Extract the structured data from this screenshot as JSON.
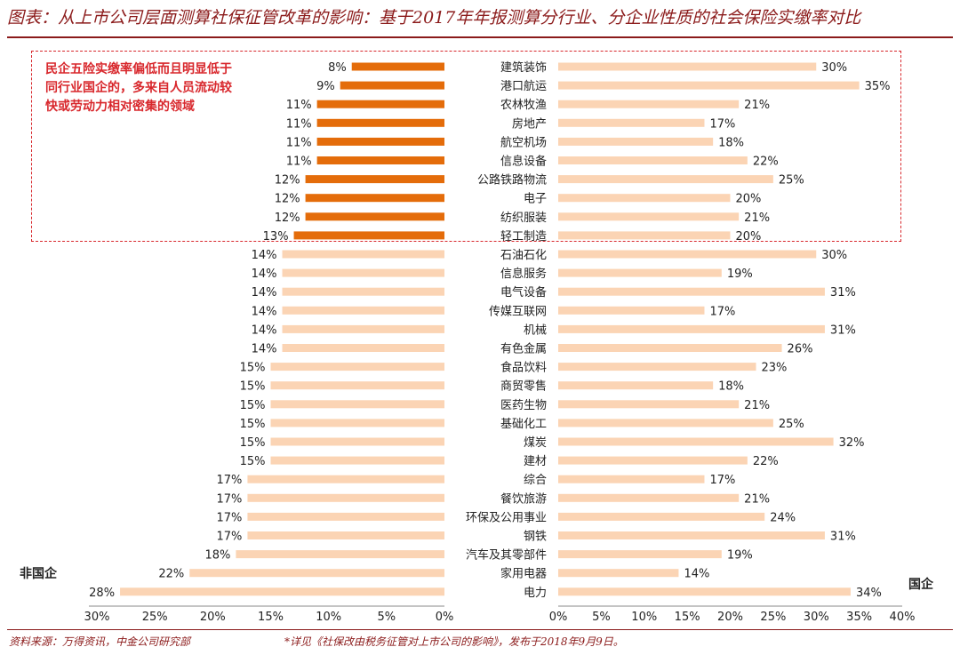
{
  "title": "图表：从上市公司层面测算社保征管改革的影响：基于2017年年报测算分行业、分企业性质的社会保险实缴率对比",
  "annotation": "民企五险实缴率偏低而且明显低于同行业国企的，多来自人员流动较快或劳动力相对密集的领域",
  "source": "资料来源：万得资讯，中金公司研究部",
  "note": "*详见《社保改由税务征管对上市公司的影响》，发布于2018年9月9日。",
  "colors": {
    "highlight": "#e46c0a",
    "normal": "#fbd4b4",
    "title": "#8b1a1a",
    "annotation": "#d8272c"
  },
  "chart_data": {
    "type": "bar",
    "orientation": "horizontal-back-to-back",
    "categories": [
      "建筑装饰",
      "港口航运",
      "农林牧渔",
      "房地产",
      "航空机场",
      "信息设备",
      "公路铁路物流",
      "电子",
      "纺织服装",
      "轻工制造",
      "石油石化",
      "信息服务",
      "电气设备",
      "传媒互联网",
      "机械",
      "有色金属",
      "食品饮料",
      "商贸零售",
      "医药生物",
      "基础化工",
      "煤炭",
      "建材",
      "综合",
      "餐饮旅游",
      "环保及公用事业",
      "钢铁",
      "汽车及其零部件",
      "家用电器",
      "电力"
    ],
    "series": [
      {
        "name": "非国企",
        "values": [
          8,
          9,
          11,
          11,
          11,
          11,
          12,
          12,
          12,
          13,
          14,
          14,
          14,
          14,
          14,
          14,
          15,
          15,
          15,
          15,
          15,
          15,
          17,
          17,
          17,
          17,
          18,
          22,
          28
        ],
        "labels": [
          "8%",
          "9%",
          "11%",
          "11%",
          "11%",
          "11%",
          "12%",
          "12%",
          "12%",
          "13%",
          "14%",
          "14%",
          "14%",
          "14%",
          "14%",
          "14%",
          "15%",
          "15%",
          "15%",
          "15%",
          "15%",
          "15%",
          "17%",
          "17%",
          "17%",
          "17%",
          "18%",
          "22%",
          "28%"
        ]
      },
      {
        "name": "国企",
        "values": [
          30,
          35,
          21,
          17,
          18,
          22,
          25,
          20,
          21,
          20,
          30,
          19,
          31,
          17,
          31,
          26,
          23,
          18,
          21,
          25,
          32,
          22,
          17,
          21,
          24,
          31,
          19,
          14,
          34
        ],
        "labels": [
          "30%",
          "35%",
          "21%",
          "17%",
          "18%",
          "22%",
          "25%",
          "20%",
          "21%",
          "20%",
          "30%",
          "19%",
          "31%",
          "17%",
          "31%",
          "26%",
          "23%",
          "18%",
          "21%",
          "25%",
          "32%",
          "22%",
          "17%",
          "21%",
          "24%",
          "31%",
          "19%",
          "14%",
          "34%"
        ]
      }
    ],
    "highlighted_count": 10,
    "left_axis": {
      "ticks": [
        "30%",
        "25%",
        "20%",
        "15%",
        "10%",
        "5%",
        "0%"
      ],
      "range": [
        0,
        30
      ]
    },
    "right_axis": {
      "ticks": [
        "0%",
        "5%",
        "10%",
        "15%",
        "20%",
        "25%",
        "30%",
        "35%",
        "40%"
      ],
      "range": [
        0,
        40
      ]
    }
  }
}
